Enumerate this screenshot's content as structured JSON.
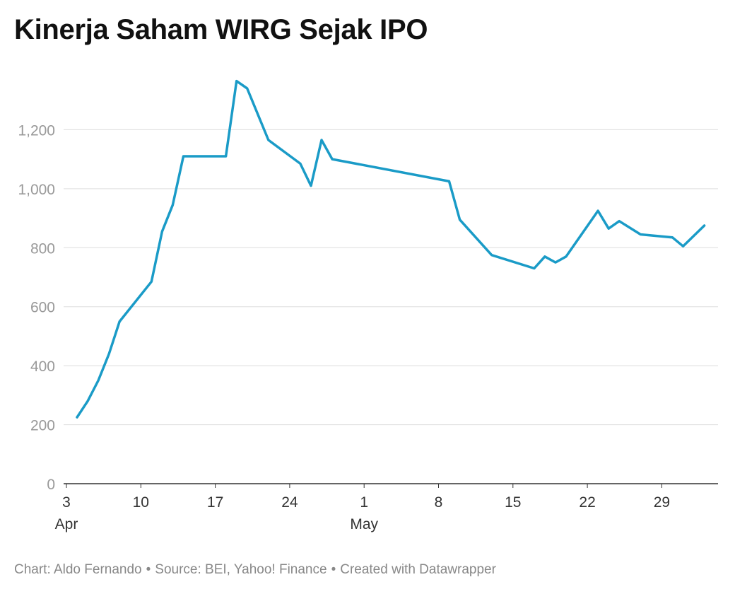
{
  "chart_data": {
    "type": "line",
    "title": "Kinerja Saham WIRG Sejak IPO",
    "xlabel": "",
    "ylabel": "",
    "ylim": [
      0,
      1400
    ],
    "yticks": [
      0,
      200,
      400,
      600,
      800,
      1000,
      1200
    ],
    "ytick_labels": [
      "0",
      "200",
      "400",
      "600",
      "800",
      "1,000",
      "1,200"
    ],
    "xlim": [
      2,
      34.5
    ],
    "xticks": [
      {
        "day": 3,
        "label": "3",
        "sublabel": "Apr"
      },
      {
        "day": 10,
        "label": "10",
        "sublabel": ""
      },
      {
        "day": 17,
        "label": "17",
        "sublabel": ""
      },
      {
        "day": 24,
        "label": "24",
        "sublabel": ""
      },
      {
        "day": 31,
        "label": "1",
        "sublabel": "May"
      },
      {
        "day": 38,
        "label": "8",
        "sublabel": ""
      },
      {
        "day": 45,
        "label": "15",
        "sublabel": ""
      },
      {
        "day": 52,
        "label": "22",
        "sublabel": ""
      },
      {
        "day": 59,
        "label": "29",
        "sublabel": ""
      }
    ],
    "grid": true,
    "line_color": "#1a9bc7",
    "series": [
      {
        "x": [
          "Apr 4",
          "Apr 5",
          "Apr 6",
          "Apr 7",
          "Apr 8",
          "Apr 11",
          "Apr 12",
          "Apr 13",
          "Apr 14",
          "Apr 18",
          "Apr 19",
          "Apr 20",
          "Apr 22",
          "Apr 25",
          "Apr 26",
          "Apr 27",
          "Apr 28",
          "May 9",
          "May 10",
          "May 13",
          "May 17",
          "May 18",
          "May 19",
          "May 20",
          "May 23",
          "May 24",
          "May 25",
          "May 27",
          "May 30",
          "May 31",
          "Jun 2"
        ],
        "day": [
          4,
          5,
          6,
          7,
          8,
          11,
          12,
          13,
          14,
          18,
          19,
          20,
          22,
          25,
          26,
          27,
          28,
          39,
          40,
          43,
          47,
          48,
          49,
          50,
          53,
          54,
          55,
          57,
          60,
          61,
          63
        ],
        "values": [
          225,
          280,
          350,
          440,
          550,
          685,
          855,
          945,
          1110,
          1110,
          1365,
          1340,
          1165,
          1085,
          1010,
          1165,
          1100,
          1025,
          895,
          775,
          730,
          770,
          750,
          770,
          925,
          865,
          890,
          845,
          835,
          805,
          875
        ]
      }
    ]
  },
  "footer": {
    "chart_by": "Chart: Aldo Fernando",
    "source": "Source: BEI, Yahoo! Finance",
    "created": "Created with Datawrapper",
    "separator": "•"
  }
}
